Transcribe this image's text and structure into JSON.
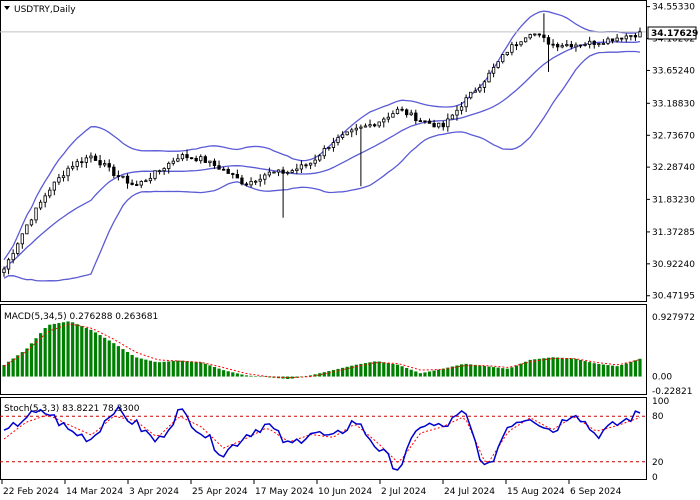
{
  "colors": {
    "background": "#ffffff",
    "frame": "#000000",
    "candle": "#000000",
    "bollinger": "#5b5bd6",
    "macd_hist": "#008000",
    "macd_signal": "#ff0000",
    "stoch_main": "#0000cc",
    "stoch_signal": "#ff0000",
    "level_line": "#cc0000",
    "price_line": "#c0c0c0",
    "price_tag_bg": "#ffffff"
  },
  "header": {
    "arrow_icon": "triangle-down-icon",
    "symbol": "USDTRY,Daily"
  },
  "price_tag": "34.17629",
  "macd_label": "MACD(5,34,5) 0.276288 0.263681",
  "stoch_label": "Stoch(5,3,3) 83.8221 78.3300",
  "chart_data": [
    {
      "type": "candlestick",
      "title": "USDTRY,Daily",
      "y_ticks": [
        "34.55330",
        "34.10262",
        "33.65240",
        "33.18830",
        "32.73670",
        "32.28740",
        "31.83230",
        "31.37285",
        "30.92240",
        "30.47195"
      ],
      "y_tick_values": [
        34.5533,
        34.10262,
        33.6524,
        33.1883,
        32.7367,
        32.2874,
        31.8323,
        31.37285,
        30.9224,
        30.47195
      ],
      "ylim": [
        30.44,
        34.59
      ],
      "x_ticks": [
        "22 Feb 2024",
        "14 Mar 2024",
        "3 Apr 2024",
        "25 Apr 2024",
        "17 May 2024",
        "10 Jun 2024",
        "2 Jul 2024",
        "24 Jul 2024",
        "15 Aug 2024",
        "6 Sep 2024"
      ],
      "series": [
        {
          "name": "USDTRY",
          "values": [
            30.85,
            31.45,
            31.95,
            32.3,
            32.45,
            32.2,
            32.02,
            32.22,
            32.45,
            32.4,
            32.25,
            32.05,
            32.2,
            32.22,
            32.35,
            32.65,
            32.8,
            32.92,
            33.1,
            32.95,
            32.85,
            33.22,
            33.55,
            33.95,
            34.2,
            34.02,
            34.02,
            34.05,
            34.12,
            34.176
          ]
        },
        {
          "name": "Bollinger Bands",
          "values": []
        }
      ]
    },
    {
      "type": "bar",
      "title": "MACD(5,34,5) 0.276288 0.263681",
      "y_ticks": [
        "0.927972",
        "0.00",
        "-0.22821"
      ],
      "ylim": [
        -0.24,
        0.94
      ],
      "series": [
        {
          "name": "MACD",
          "values": [
            0.18,
            0.42,
            0.8,
            0.86,
            0.72,
            0.52,
            0.3,
            0.22,
            0.25,
            0.22,
            0.1,
            0.02,
            -0.01,
            -0.04,
            0.02,
            0.1,
            0.18,
            0.24,
            0.18,
            0.05,
            0.12,
            0.2,
            0.16,
            0.12,
            0.26,
            0.3,
            0.28,
            0.2,
            0.16,
            0.276
          ]
        },
        {
          "name": "Signal",
          "values": [
            0.16,
            0.38,
            0.7,
            0.82,
            0.75,
            0.58,
            0.38,
            0.26,
            0.24,
            0.22,
            0.14,
            0.05,
            0.0,
            -0.02,
            0.0,
            0.07,
            0.15,
            0.22,
            0.2,
            0.1,
            0.11,
            0.17,
            0.17,
            0.14,
            0.23,
            0.28,
            0.28,
            0.22,
            0.18,
            0.264
          ]
        }
      ]
    },
    {
      "type": "line",
      "title": "Stoch(5,3,3) 83.8221 78.3300",
      "y_ticks": [
        "100",
        "80",
        "20",
        "0"
      ],
      "ylim": [
        0,
        100
      ],
      "levels": [
        80,
        20
      ],
      "series": [
        {
          "name": "Main",
          "values": [
            55,
            80,
            85,
            60,
            50,
            90,
            70,
            45,
            88,
            60,
            30,
            55,
            70,
            40,
            60,
            50,
            75,
            40,
            10,
            70,
            65,
            85,
            5,
            70,
            80,
            60,
            88,
            55,
            70,
            83.82
          ]
        },
        {
          "name": "Signal",
          "values": [
            50,
            72,
            82,
            68,
            55,
            80,
            74,
            52,
            80,
            66,
            38,
            50,
            65,
            46,
            56,
            52,
            70,
            46,
            18,
            58,
            66,
            80,
            15,
            60,
            78,
            62,
            80,
            60,
            68,
            78.33
          ]
        }
      ]
    }
  ]
}
